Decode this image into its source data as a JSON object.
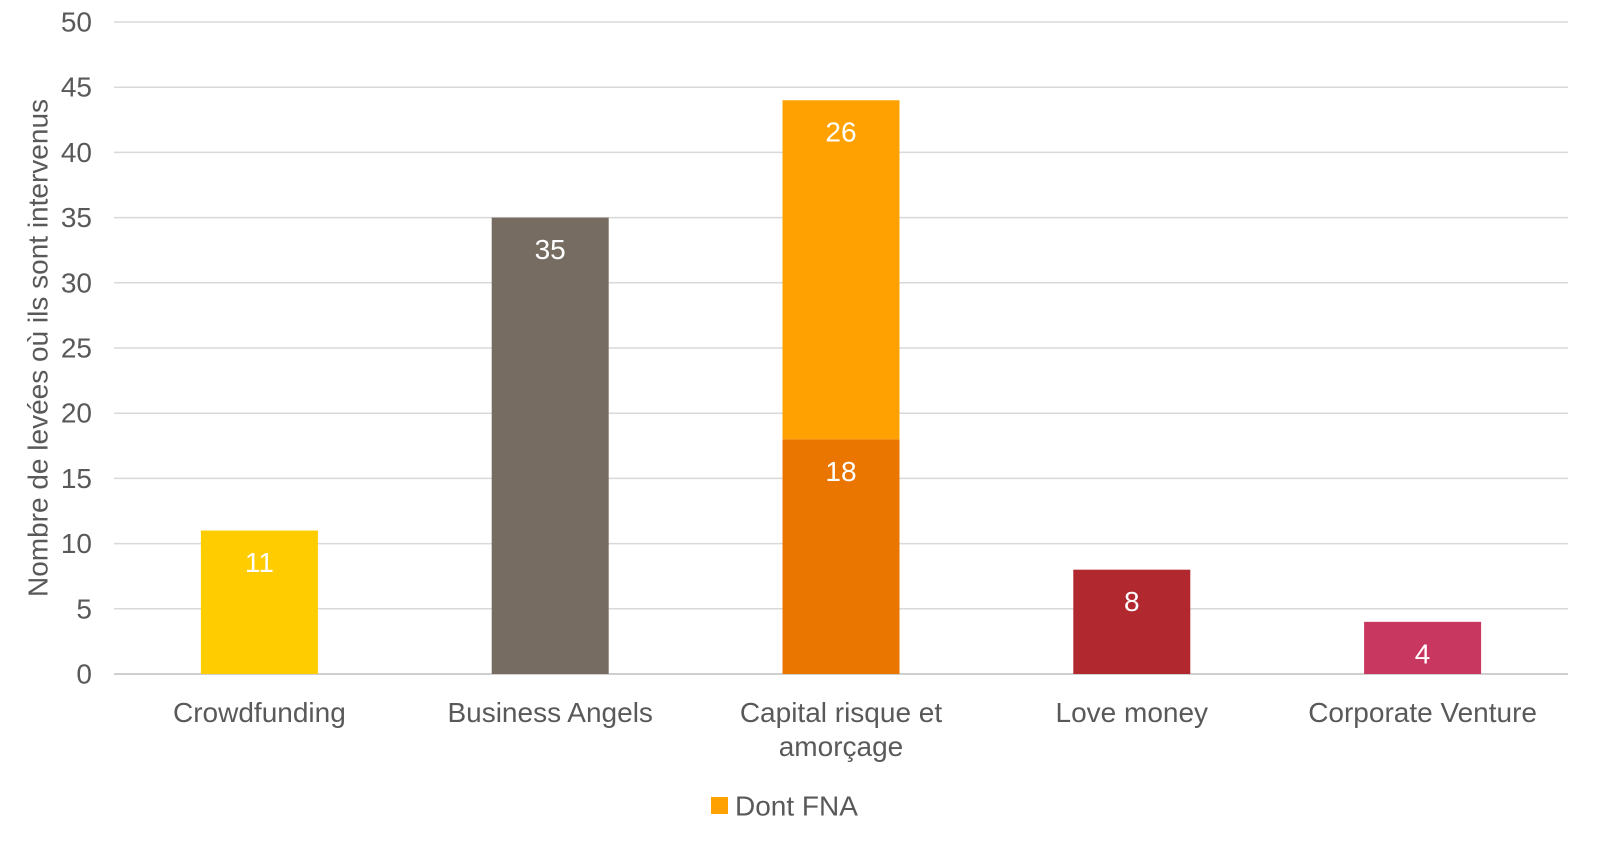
{
  "chart_data": {
    "type": "bar",
    "stacked": true,
    "title": "",
    "xlabel": "",
    "ylabel": "Nombre de levées où ils sont intervenus",
    "ylim": [
      0,
      50
    ],
    "yticks": [
      0,
      5,
      10,
      15,
      20,
      25,
      30,
      35,
      40,
      45,
      50
    ],
    "grid": true,
    "legend_position": "bottom",
    "categories": [
      {
        "label_lines": [
          "Crowdfunding"
        ]
      },
      {
        "label_lines": [
          "Business Angels"
        ]
      },
      {
        "label_lines": [
          "Capital risque et",
          "amorçage"
        ]
      },
      {
        "label_lines": [
          "Love money"
        ]
      },
      {
        "label_lines": [
          "Corporate Venture"
        ]
      }
    ],
    "bars": [
      {
        "category_index": 0,
        "segments": [
          {
            "value": 11,
            "label": "11",
            "color": "#FFCC00"
          }
        ]
      },
      {
        "category_index": 1,
        "segments": [
          {
            "value": 35,
            "label": "35",
            "color": "#776C61"
          }
        ]
      },
      {
        "category_index": 2,
        "segments": [
          {
            "value": 18,
            "label": "18",
            "color": "#EA7600"
          },
          {
            "value": 26,
            "label": "26",
            "color": "#FFA100",
            "series": "Dont FNA"
          }
        ]
      },
      {
        "category_index": 3,
        "segments": [
          {
            "value": 8,
            "label": "8",
            "color": "#B1282E"
          }
        ]
      },
      {
        "category_index": 4,
        "segments": [
          {
            "value": 4,
            "label": "4",
            "color": "#C8375F"
          }
        ]
      }
    ],
    "legend": [
      {
        "name": "Dont FNA",
        "color": "#FFA100"
      }
    ],
    "colors": {
      "grid": "#D9D9D9",
      "axis": "#BFBFBF",
      "tick_text": "#595959",
      "data_label": "#FFFFFF"
    }
  }
}
